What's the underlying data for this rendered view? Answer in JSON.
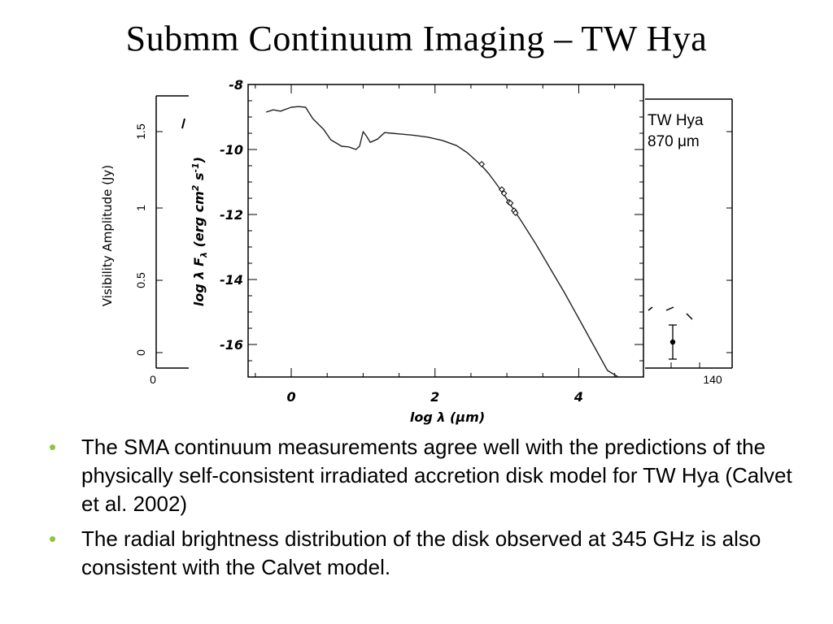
{
  "slide": {
    "title": "Submm Continuum Imaging – TW Hya",
    "bullets": [
      "The SMA continuum measurements agree well with the predictions of the physically self-consistent irradiated accretion disk model for TW Hya (Calvet et al. 2002)",
      "The radial brightness distribution of the disk observed at 345 GHz is also consistent with the Calvet model."
    ],
    "bullet_color": "#8cc63f"
  },
  "chart_data": [
    {
      "type": "line",
      "xlabel": "log λ (μm)",
      "ylabel": "log λ F_λ (erg cm² s⁻¹)",
      "xlim": [
        -0.6,
        4.9
      ],
      "ylim": [
        -17.0,
        -8.0
      ],
      "xticks": [
        0,
        2,
        4
      ],
      "yticks": [
        -8,
        -10,
        -12,
        -14,
        -16
      ],
      "series": [
        {
          "kind": "model-curve",
          "x": [
            -0.35,
            -0.25,
            -0.15,
            0.0,
            0.1,
            0.2,
            0.3,
            0.45,
            0.55,
            0.7,
            0.8,
            0.9,
            0.95,
            1.0,
            1.05,
            1.1,
            1.2,
            1.3,
            1.4,
            1.5,
            1.7,
            1.9,
            2.1,
            2.3,
            2.45,
            2.55,
            2.65,
            2.75,
            2.85,
            2.95,
            3.05,
            3.2,
            3.4,
            3.6,
            3.8,
            4.0,
            4.2,
            4.4,
            4.55
          ],
          "y": [
            -8.85,
            -8.78,
            -8.82,
            -8.7,
            -8.68,
            -8.7,
            -9.05,
            -9.38,
            -9.7,
            -9.9,
            -9.92,
            -10.0,
            -9.9,
            -9.45,
            -9.6,
            -9.78,
            -9.68,
            -9.48,
            -9.5,
            -9.52,
            -9.56,
            -9.62,
            -9.72,
            -9.88,
            -10.1,
            -10.3,
            -10.5,
            -10.75,
            -11.05,
            -11.35,
            -11.7,
            -12.2,
            -12.9,
            -13.65,
            -14.4,
            -15.2,
            -16.0,
            -16.8,
            -17.0
          ]
        },
        {
          "kind": "measurements",
          "x": [
            2.65,
            2.93,
            2.96,
            3.03,
            3.05,
            3.1,
            3.12
          ],
          "y": [
            -10.45,
            -11.23,
            -11.35,
            -11.62,
            -11.65,
            -11.88,
            -11.95
          ]
        }
      ]
    },
    {
      "type": "scatter",
      "ylabel": "Visibility Amplitude (Jy)",
      "yticks": [
        "0",
        "0.5",
        "1",
        "1.5"
      ],
      "xticks": [
        "0",
        "140"
      ],
      "legend": [
        "TW Hya",
        "870 μm"
      ],
      "legend_placement": "top-right",
      "note": "mostly hidden behind the SED figure"
    }
  ]
}
